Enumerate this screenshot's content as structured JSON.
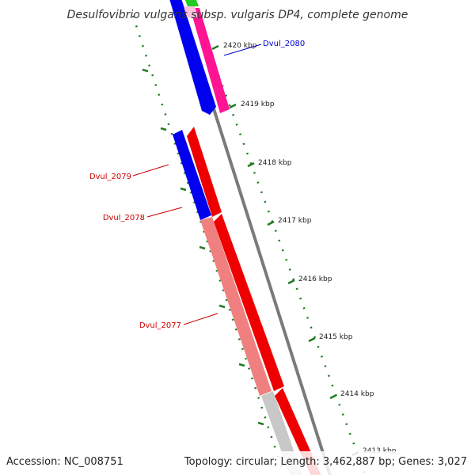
{
  "title": "Desulfovibrio vulgaris subsp. vulgaris DP4, complete genome",
  "accession": "Accession: NC_008751",
  "summary": "Topology: circular; Length: 3,462,887 bp; Genes: 3,027",
  "colors": {
    "backbone": "#8a8a8a",
    "tick": "#1f7a1f",
    "label_forward": "#cc0000",
    "label_reverse": "#0000cc",
    "blue_track": "#0000ee",
    "red_track": "#ee0000",
    "pink_track": "#ff1493",
    "green_track": "#22cc22",
    "salmon_track": "#f08080",
    "grey_track": "#c8c8c8"
  },
  "position_ticks": [
    {
      "label": "2420 kbp"
    },
    {
      "label": "2419 kbp"
    },
    {
      "label": "2418 kbp"
    },
    {
      "label": "2417 kbp"
    },
    {
      "label": "2416 kbp"
    },
    {
      "label": "2415 kbp"
    },
    {
      "label": "2414 kbp"
    },
    {
      "label": "2413 kbp"
    }
  ],
  "gene_labels": [
    {
      "name": "Dvul_2080",
      "color": "#0000cc"
    },
    {
      "name": "Dvul_2079",
      "color": "#cc0000"
    },
    {
      "name": "Dvul_2078",
      "color": "#cc0000"
    },
    {
      "name": "Dvul_2077",
      "color": "#cc0000"
    }
  ]
}
